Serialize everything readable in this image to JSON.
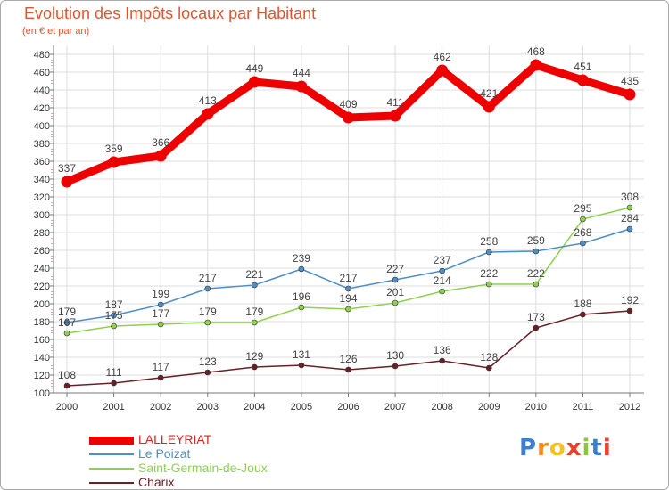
{
  "header": {
    "title": "Evolution des Impôts locaux par Habitant",
    "subtitle": "(en € et par an)"
  },
  "chart_data": {
    "type": "line",
    "x": [
      "2000",
      "2001",
      "2002",
      "2003",
      "2004",
      "2005",
      "2006",
      "2007",
      "2008",
      "2009",
      "2010",
      "2011",
      "2012"
    ],
    "ylim": [
      100,
      480
    ],
    "y_ticks": [
      100,
      120,
      140,
      160,
      180,
      200,
      220,
      240,
      260,
      280,
      300,
      320,
      340,
      360,
      380,
      400,
      420,
      440,
      460,
      480
    ],
    "grid": true,
    "legend_position": "bottom-left",
    "series": [
      {
        "name": "LALLEYRIAT",
        "color": "#ee0000",
        "values": [
          337,
          359,
          366,
          413,
          449,
          444,
          409,
          411,
          462,
          421,
          468,
          451,
          435
        ]
      },
      {
        "name": "Le Poizat",
        "color": "#4f8fc8",
        "values": [
          179,
          187,
          199,
          217,
          221,
          239,
          217,
          227,
          237,
          258,
          259,
          268,
          284
        ]
      },
      {
        "name": "Saint-Germain-de-Joux",
        "color": "#8fd14f",
        "values": [
          167,
          175,
          177,
          179,
          179,
          196,
          194,
          201,
          214,
          222,
          222,
          295,
          308
        ]
      },
      {
        "name": "Charix",
        "color": "#6b1f24",
        "values": [
          108,
          111,
          117,
          123,
          129,
          131,
          126,
          130,
          136,
          128,
          173,
          188,
          192
        ]
      }
    ]
  },
  "logo": {
    "letters": [
      "P",
      "r",
      "o",
      "x",
      "i",
      "t",
      "i"
    ],
    "colors": [
      "#3d7fd1",
      "#f28c1e",
      "#f2c21e",
      "#e8412c",
      "#8cc63f",
      "#3d7fd1",
      "#e8412c"
    ]
  }
}
